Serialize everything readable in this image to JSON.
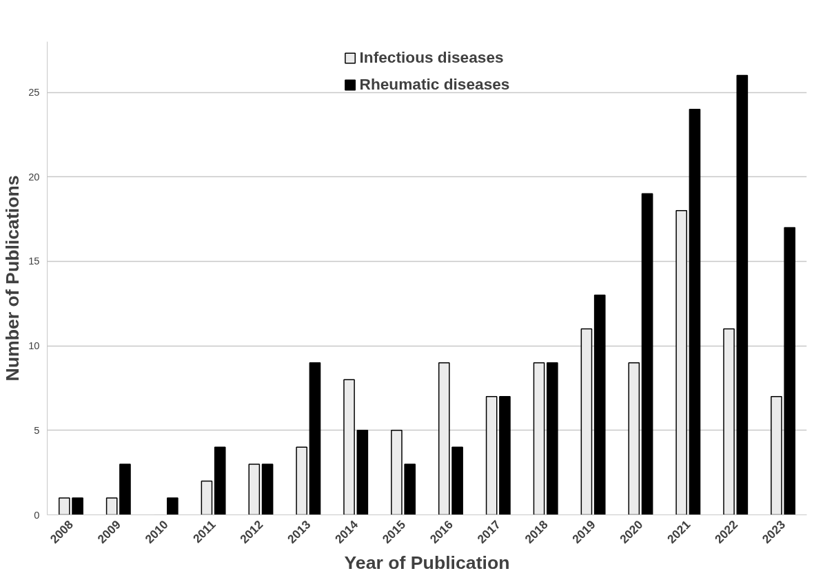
{
  "chart_data": {
    "type": "bar",
    "xlabel": "Year of Publication",
    "ylabel": "Number of Publications",
    "categories": [
      "2008",
      "2009",
      "2010",
      "2011",
      "2012",
      "2013",
      "2014",
      "2015",
      "2016",
      "2017",
      "2018",
      "2019",
      "2020",
      "2021",
      "2022",
      "2023"
    ],
    "series": [
      {
        "name": "Infectious diseases",
        "color": "#ebebeb",
        "values": [
          1,
          1,
          0,
          2,
          3,
          4,
          8,
          5,
          9,
          7,
          9,
          11,
          9,
          18,
          11,
          7
        ]
      },
      {
        "name": "Rheumatic diseases",
        "color": "#000000",
        "values": [
          1,
          3,
          1,
          4,
          3,
          9,
          5,
          3,
          4,
          7,
          9,
          13,
          19,
          24,
          26,
          17
        ]
      }
    ],
    "ylim": [
      0,
      28
    ],
    "yticks": [
      0,
      5,
      10,
      15,
      20,
      25
    ],
    "grid": "y",
    "legend": "top"
  }
}
